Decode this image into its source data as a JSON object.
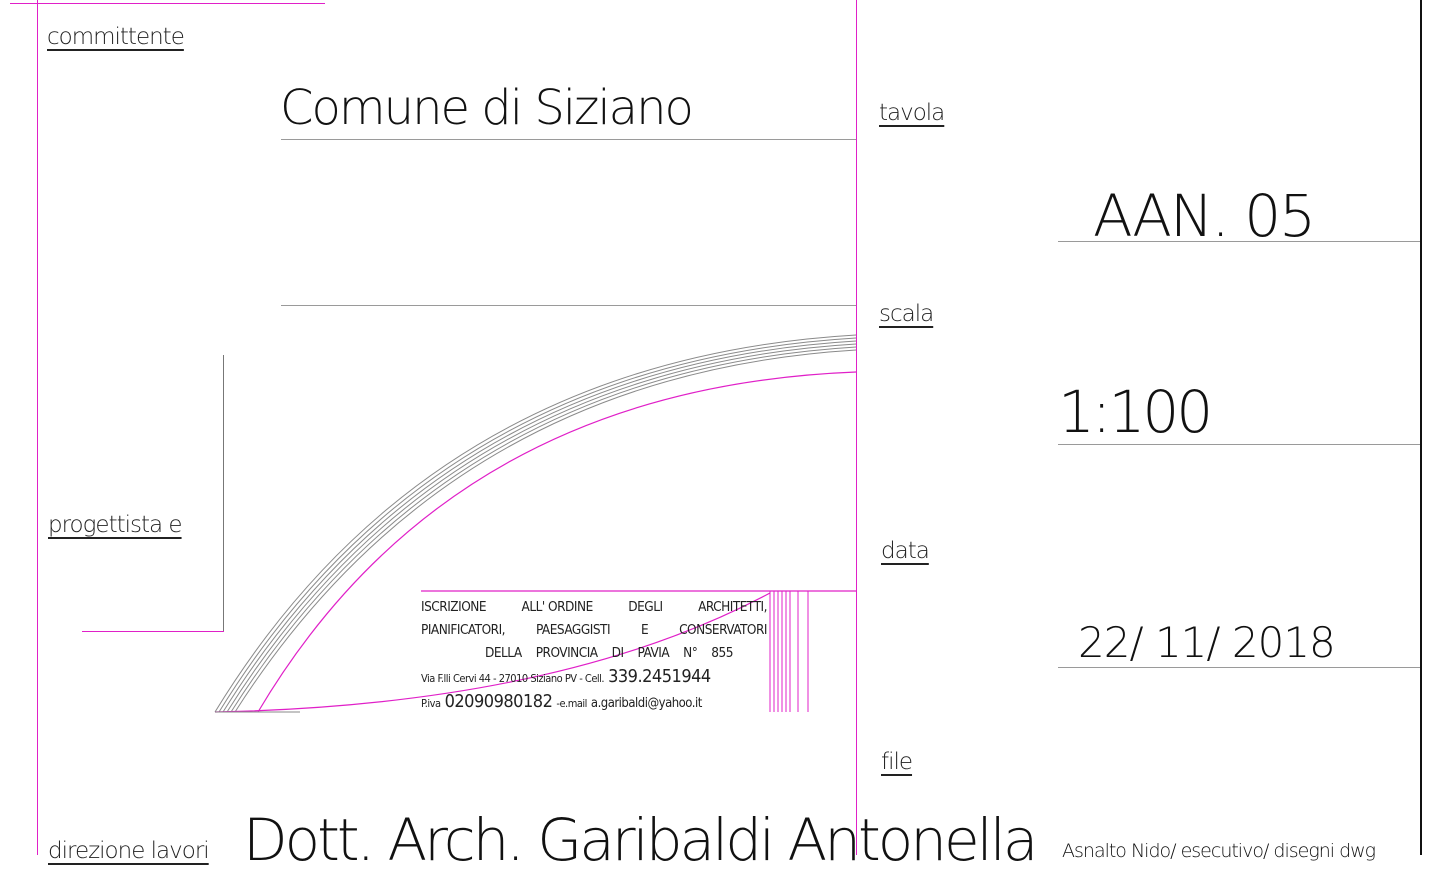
{
  "labels": {
    "committente": "committente",
    "tavola": "tavola",
    "scala": "scala",
    "progettista": "progettista e",
    "data": "data",
    "file": "file",
    "direzione": "direzione lavori"
  },
  "values": {
    "committente": "Comune di Siziano",
    "tavola": "AAN. 05",
    "scala": "1:100",
    "data": "22/ 11/ 2018",
    "file": "Asnalto Nido/ esecutivo/ disegni dwg",
    "progettista": "Dott. Arch. Garibaldi Antonella"
  },
  "stamp": {
    "line1": [
      "ISCRIZIONE",
      "ALL' ORDINE",
      "DEGLI",
      "ARCHITETTI,"
    ],
    "line2": [
      "PIANIFICATORI,",
      "PAESAGGISTI",
      "E",
      "CONSERVATORI"
    ],
    "line3": [
      "DELLA",
      "PROVINCIA",
      "DI",
      "PAVIA",
      "N°",
      "855"
    ],
    "address": "Via F.lli Cervi 44 - 27010 Siziano PV - Cell.",
    "cell": "339.2451944",
    "piva_label": "P.iva",
    "piva": "02090980182",
    "email_label": "-e.mail",
    "email": "a.garibaldi@yahoo.it"
  },
  "colors": {
    "frame": "#e020c8",
    "rule": "#9a9a9a",
    "arc": "#8a8a8a",
    "border": "#111111"
  }
}
